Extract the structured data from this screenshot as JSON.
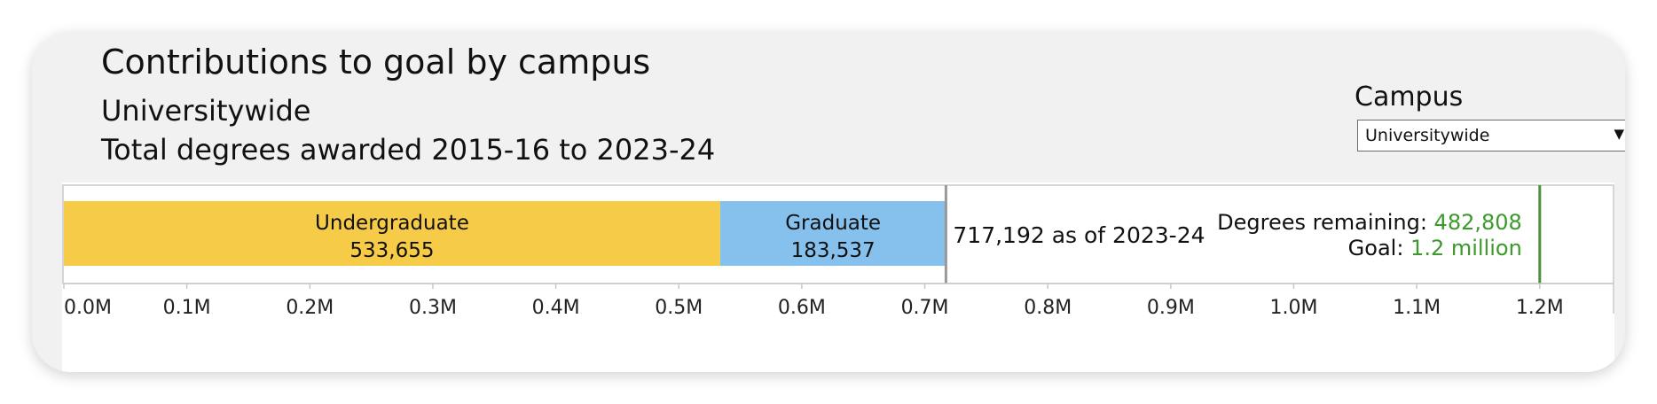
{
  "header": {
    "title": "Contributions to goal by campus",
    "subtitle": "Universitywide",
    "period": "Total degrees awarded 2015-16 to 2023-24"
  },
  "filter": {
    "label": "Campus",
    "selected": "Universitywide"
  },
  "colors": {
    "undergraduate": "#f5cb47",
    "graduate": "#85c1ec",
    "goal_text": "#3a9a2a",
    "goal_line": "#4e8f3e",
    "marker": "#999999"
  },
  "chart_data": {
    "type": "bar",
    "orientation": "horizontal",
    "stacked": true,
    "series": [
      {
        "name": "Undergraduate",
        "value": 533655,
        "label": "533,655"
      },
      {
        "name": "Graduate",
        "value": 183537,
        "label": "183,537"
      }
    ],
    "xlim": [
      0,
      1260000
    ],
    "ticks": [
      0,
      100000,
      200000,
      300000,
      400000,
      500000,
      600000,
      700000,
      800000,
      900000,
      1000000,
      1100000,
      1200000
    ],
    "tick_labels": [
      "0.0M",
      "0.1M",
      "0.2M",
      "0.3M",
      "0.4M",
      "0.5M",
      "0.6M",
      "0.7M",
      "0.8M",
      "0.9M",
      "1.0M",
      "1.1M",
      "1.2M"
    ],
    "total": 717192,
    "total_label": "717,192 as of 2023-24",
    "remaining": 482808,
    "remaining_label": "Degrees remaining: ",
    "remaining_value": "482,808",
    "goal": 1200000,
    "goal_label": "Goal: ",
    "goal_value": "1.2 million"
  }
}
